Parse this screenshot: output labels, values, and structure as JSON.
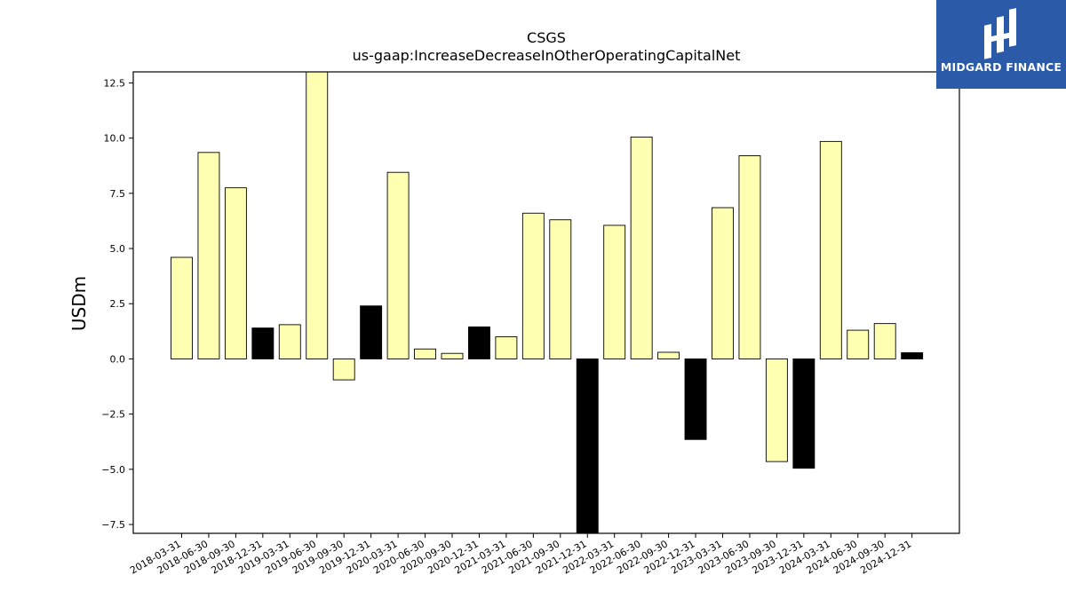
{
  "chart_data": {
    "type": "bar",
    "title": "CSGS",
    "subtitle": "us-gaap:IncreaseDecreaseInOtherOperatingCapitalNet",
    "ylabel": "USDm",
    "xlabel": "",
    "ylim": [
      -7.9,
      13.0
    ],
    "yticks": [
      -7.5,
      -5.0,
      -2.5,
      0.0,
      2.5,
      5.0,
      7.5,
      10.0,
      12.5
    ],
    "ytick_labels": [
      "−7.5",
      "−5.0",
      "−2.5",
      "0.0",
      "2.5",
      "5.0",
      "7.5",
      "10.0",
      "12.5"
    ],
    "grid": false,
    "colors": {
      "regular": "#ffffb2",
      "highlight": "#000000",
      "edge": "#000000"
    },
    "categories": [
      "2018-03-31",
      "2018-06-30",
      "2018-09-30",
      "2018-12-31",
      "2019-03-31",
      "2019-06-30",
      "2019-09-30",
      "2019-12-31",
      "2020-03-31",
      "2020-06-30",
      "2020-09-30",
      "2020-12-31",
      "2021-03-31",
      "2021-06-30",
      "2021-09-30",
      "2021-12-31",
      "2022-03-31",
      "2022-06-30",
      "2022-09-30",
      "2022-12-31",
      "2023-03-31",
      "2023-06-30",
      "2023-09-30",
      "2023-12-31",
      "2024-03-31",
      "2024-06-30",
      "2024-09-30",
      "2024-12-31"
    ],
    "values": [
      4.6,
      9.35,
      7.75,
      1.4,
      1.55,
      13.0,
      -0.95,
      2.4,
      8.45,
      0.45,
      0.25,
      1.45,
      1.0,
      6.6,
      6.3,
      -7.9,
      6.05,
      10.05,
      0.3,
      -3.65,
      6.85,
      9.2,
      -4.65,
      -4.95,
      9.85,
      1.3,
      1.6,
      0.28
    ],
    "highlight": [
      false,
      false,
      false,
      true,
      false,
      false,
      false,
      true,
      false,
      false,
      false,
      true,
      false,
      false,
      false,
      true,
      false,
      false,
      false,
      true,
      false,
      false,
      false,
      true,
      false,
      false,
      false,
      true
    ]
  },
  "logo": {
    "text": "MIDGARD FINANCE",
    "background": "#2a5aa8"
  }
}
